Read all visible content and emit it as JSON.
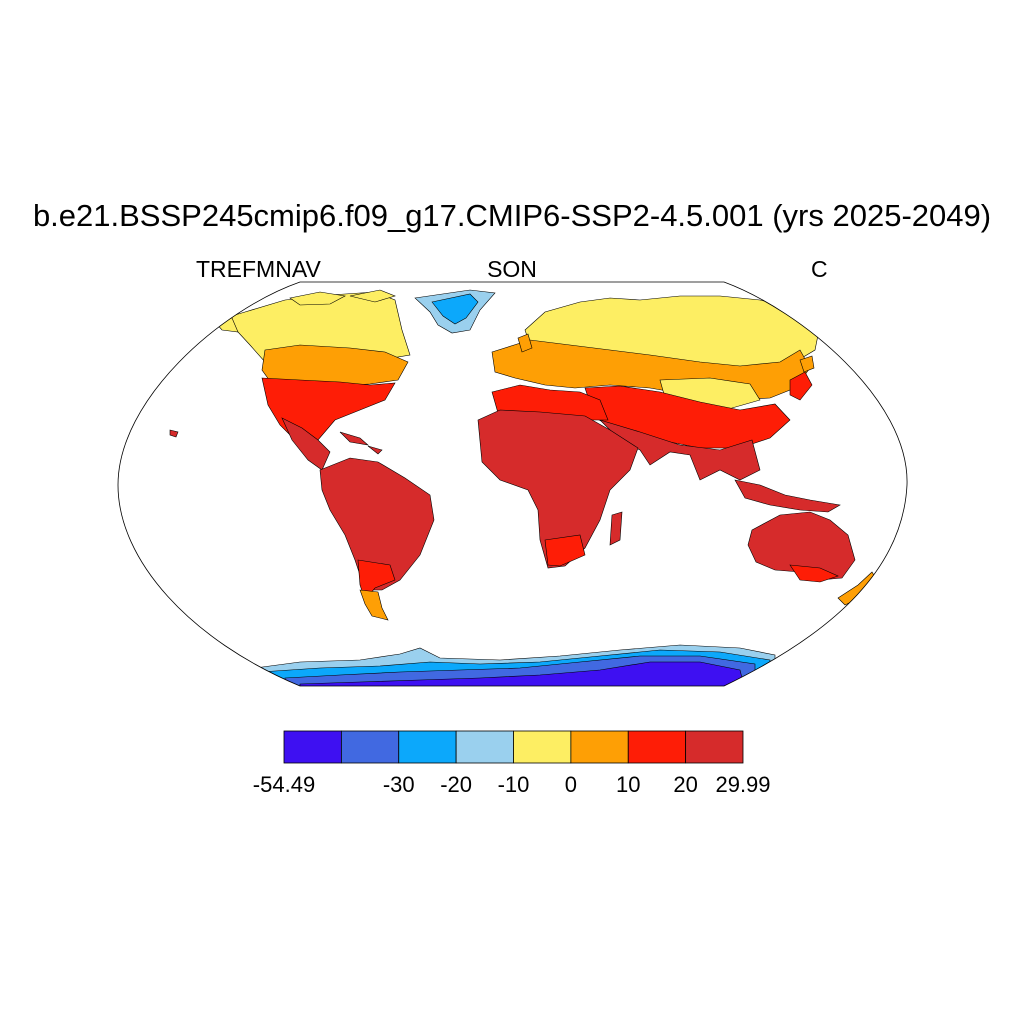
{
  "title": "b.e21.BSSP245cmip6.f09_g17.CMIP6-SSP2-4.5.001 (yrs 2025-2049)",
  "subtitle_left": "TREFMNAV",
  "subtitle_center": "SON",
  "subtitle_right": "C",
  "colors": {
    "c1": "#3e10f2",
    "c2": "#4169e1",
    "c3": "#0ca8fb",
    "c4": "#9ad0ee",
    "c5": "#fdee63",
    "c6": "#fe9f05",
    "c7": "#fe1d06",
    "c8": "#d62b2b",
    "outline": "#000000",
    "ocean": "#ffffff"
  },
  "colorbar": {
    "colors": [
      "#3e10f2",
      "#4169e1",
      "#0ca8fb",
      "#9ad0ee",
      "#fdee63",
      "#fe9f05",
      "#fe1d06",
      "#d62b2b"
    ],
    "labels": [
      "-54.49",
      "",
      "-30",
      "-20",
      "-10",
      "0",
      "10",
      "20",
      "29.99"
    ]
  }
}
